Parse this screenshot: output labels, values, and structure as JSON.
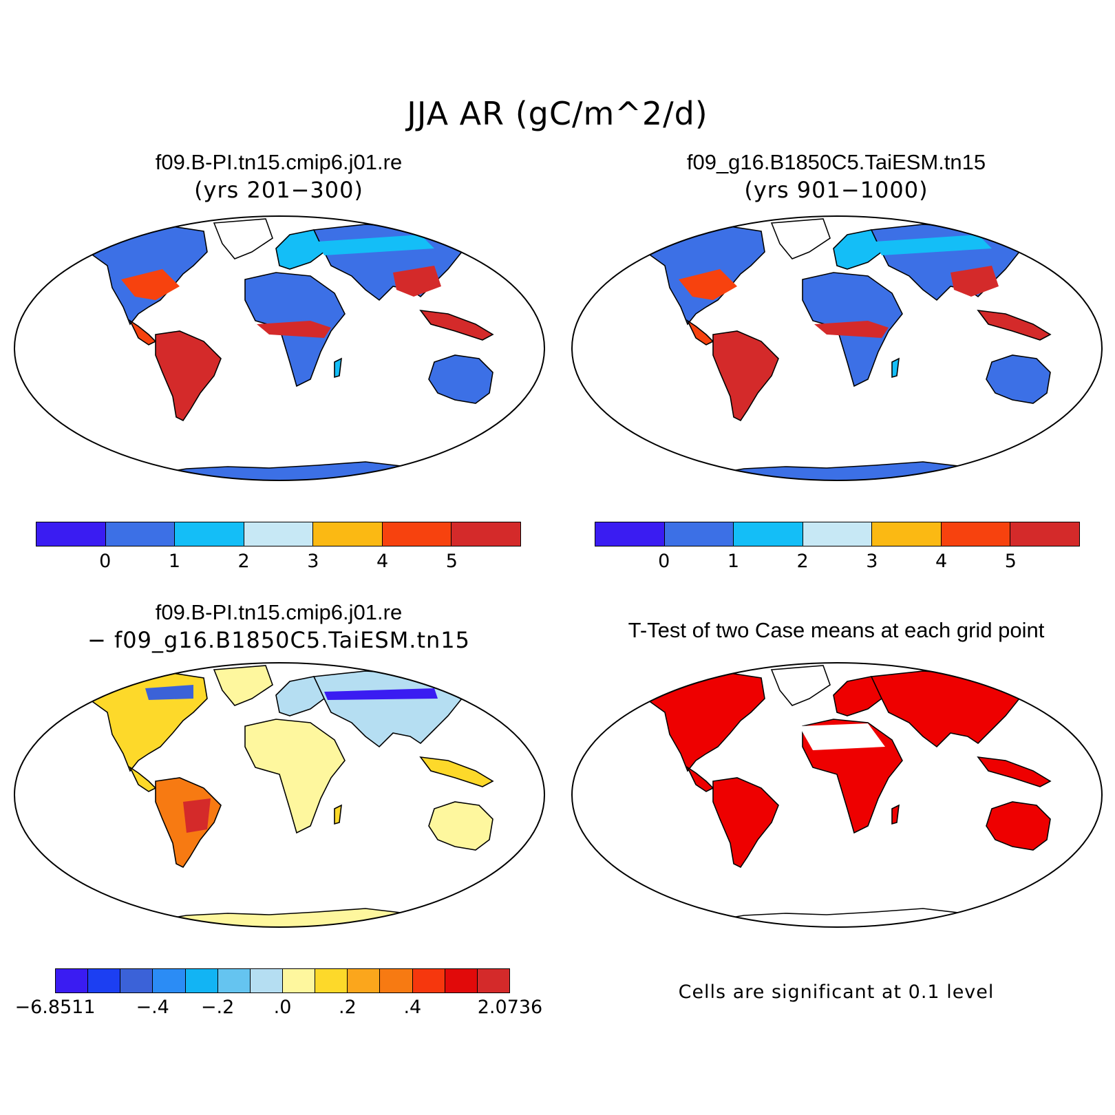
{
  "main_title": "JJA AR (gC/m^2/d)",
  "panels": [
    {
      "title": "f09.B-PI.tn15.cmip6.j01.re",
      "subtitle": "(yrs 201−300)",
      "colorbar": {
        "colors": [
          "#3a1cf2",
          "#3c70e6",
          "#14bef7",
          "#c7e8f5",
          "#fbb913",
          "#f7420e",
          "#d42a2a"
        ],
        "labels": [
          "0",
          "1",
          "2",
          "3",
          "4",
          "5"
        ]
      }
    },
    {
      "title": "f09_g16.B1850C5.TaiESM.tn15",
      "subtitle": "(yrs 901−1000)",
      "colorbar": {
        "colors": [
          "#3a1cf2",
          "#3c70e6",
          "#14bef7",
          "#c7e8f5",
          "#fbb913",
          "#f7420e",
          "#d42a2a"
        ],
        "labels": [
          "0",
          "1",
          "2",
          "3",
          "4",
          "5"
        ]
      }
    },
    {
      "title": "f09.B-PI.tn15.cmip6.j01.re",
      "subtitle": "− f09_g16.B1850C5.TaiESM.tn15",
      "colorbar": {
        "colors": [
          "#3a1cf2",
          "#1c3ff2",
          "#3b62d8",
          "#2b8cf5",
          "#12b4f4",
          "#65c4f0",
          "#b5def2",
          "#fef79e",
          "#fdd92a",
          "#fba61c",
          "#f77a12",
          "#f6370d",
          "#e10a0a",
          "#d42a2a"
        ],
        "labels": [
          "−6.8511",
          "−.4",
          "−.2",
          ".0",
          ".2",
          ".4",
          "2.0736"
        ]
      }
    },
    {
      "title": "T-Test of two Case means at each grid point",
      "note": "Cells are significant at 0.1 level",
      "significant_color": "#ee0000"
    }
  ]
}
